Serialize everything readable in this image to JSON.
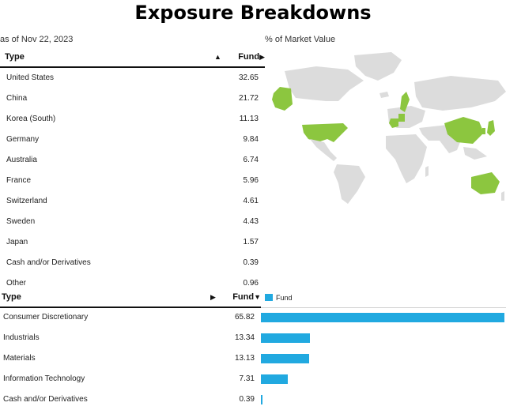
{
  "header": {
    "title": "Exposure Breakdowns",
    "as_of": "as of Nov 22, 2023"
  },
  "geo": {
    "map_label": "% of Market Value",
    "col_type": "Type",
    "col_fund": "Fund",
    "sort_icon": "▲",
    "fund_icon": "▶",
    "rows": [
      {
        "name": "United States",
        "value": "32.65"
      },
      {
        "name": "China",
        "value": "21.72"
      },
      {
        "name": "Korea (South)",
        "value": "11.13"
      },
      {
        "name": "Germany",
        "value": "9.84"
      },
      {
        "name": "Australia",
        "value": "6.74"
      },
      {
        "name": "France",
        "value": "5.96"
      },
      {
        "name": "Switzerland",
        "value": "4.61"
      },
      {
        "name": "Sweden",
        "value": "4.43"
      },
      {
        "name": "Japan",
        "value": "1.57"
      },
      {
        "name": "Cash and/or Derivatives",
        "value": "0.39"
      },
      {
        "name": "Other",
        "value": "0.96"
      }
    ]
  },
  "sector": {
    "col_type": "Type",
    "col_fund": "Fund",
    "sort_icon": "▶",
    "fund_icon": "▼",
    "legend": "Fund",
    "rows": [
      {
        "name": "Consumer Discretionary",
        "value": "65.82"
      },
      {
        "name": "Industrials",
        "value": "13.34"
      },
      {
        "name": "Materials",
        "value": "13.13"
      },
      {
        "name": "Information Technology",
        "value": "7.31"
      },
      {
        "name": "Cash and/or Derivatives",
        "value": "0.39"
      }
    ]
  },
  "colors": {
    "bar": "#21a9e0",
    "map_land": "#dcdcdc",
    "map_highlight": "#8cc63f"
  }
}
